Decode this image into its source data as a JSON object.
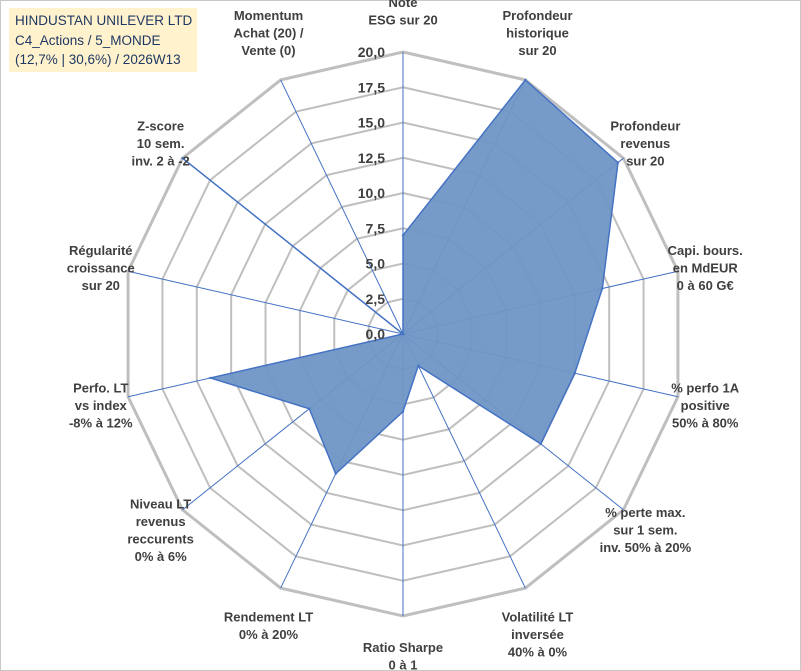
{
  "header": {
    "line1": "HINDUSTAN UNILEVER LTD",
    "line2": "C4_Actions / 5_MONDE",
    "line3": "(12,7% | 30,6%) / 2026W13"
  },
  "chart_data": {
    "type": "radar",
    "title": "HINDUSTAN UNILEVER LTD",
    "rmin": 0,
    "rmax": 20,
    "rtick": 2.5,
    "tick_labels": [
      "0,0",
      "2,5",
      "5,0",
      "7,5",
      "10,0",
      "12,5",
      "15,0",
      "17,5",
      "20,0"
    ],
    "grid": true,
    "colors": {
      "fill": "#7096c5",
      "stroke": "#4472c4",
      "grid": "#bfbfbf",
      "spoke": "#4472c4"
    },
    "axes": [
      {
        "label": [
          "Note",
          "ESG sur 20"
        ],
        "value": 7.0
      },
      {
        "label": [
          "Profondeur",
          "historique",
          "sur 20"
        ],
        "value": 20.0
      },
      {
        "label": [
          "Profondeur",
          "revenus",
          "sur 20"
        ],
        "value": 19.5
      },
      {
        "label": [
          "Capi. bours.",
          "en MdEUR",
          "0 à 60 G€"
        ],
        "value": 14.5
      },
      {
        "label": [
          "% perfo 1A",
          "positive",
          "50% à 80%"
        ],
        "value": 12.5
      },
      {
        "label": [
          "% perte max.",
          "sur 1 sem.",
          "inv. 50% à 20%"
        ],
        "value": 12.5
      },
      {
        "label": [
          "Volatilité LT",
          "inversée",
          "40% à 0%"
        ],
        "value": 2.5
      },
      {
        "label": [
          "Ratio Sharpe",
          "0 à 1"
        ],
        "value": 5.5
      },
      {
        "label": [
          "Rendement LT",
          "0% à 20%"
        ],
        "value": 11.0
      },
      {
        "label": [
          "Niveau LT",
          "revenus",
          "reccurents",
          "0% à 6%"
        ],
        "value": 8.5
      },
      {
        "label": [
          "Perfo. LT",
          "vs index",
          "-8% à 12%"
        ],
        "value": 14.0
      },
      {
        "label": [
          "Régularité",
          "croissance",
          "sur 20"
        ],
        "value": 0.0
      },
      {
        "label": [
          "Z-score",
          "10 sem.",
          "inv. 2 à -2"
        ],
        "value": 20.0
      },
      {
        "label": [
          "Momentum",
          "Achat (20) /",
          "Vente (0)"
        ],
        "value": 0.0
      }
    ]
  }
}
